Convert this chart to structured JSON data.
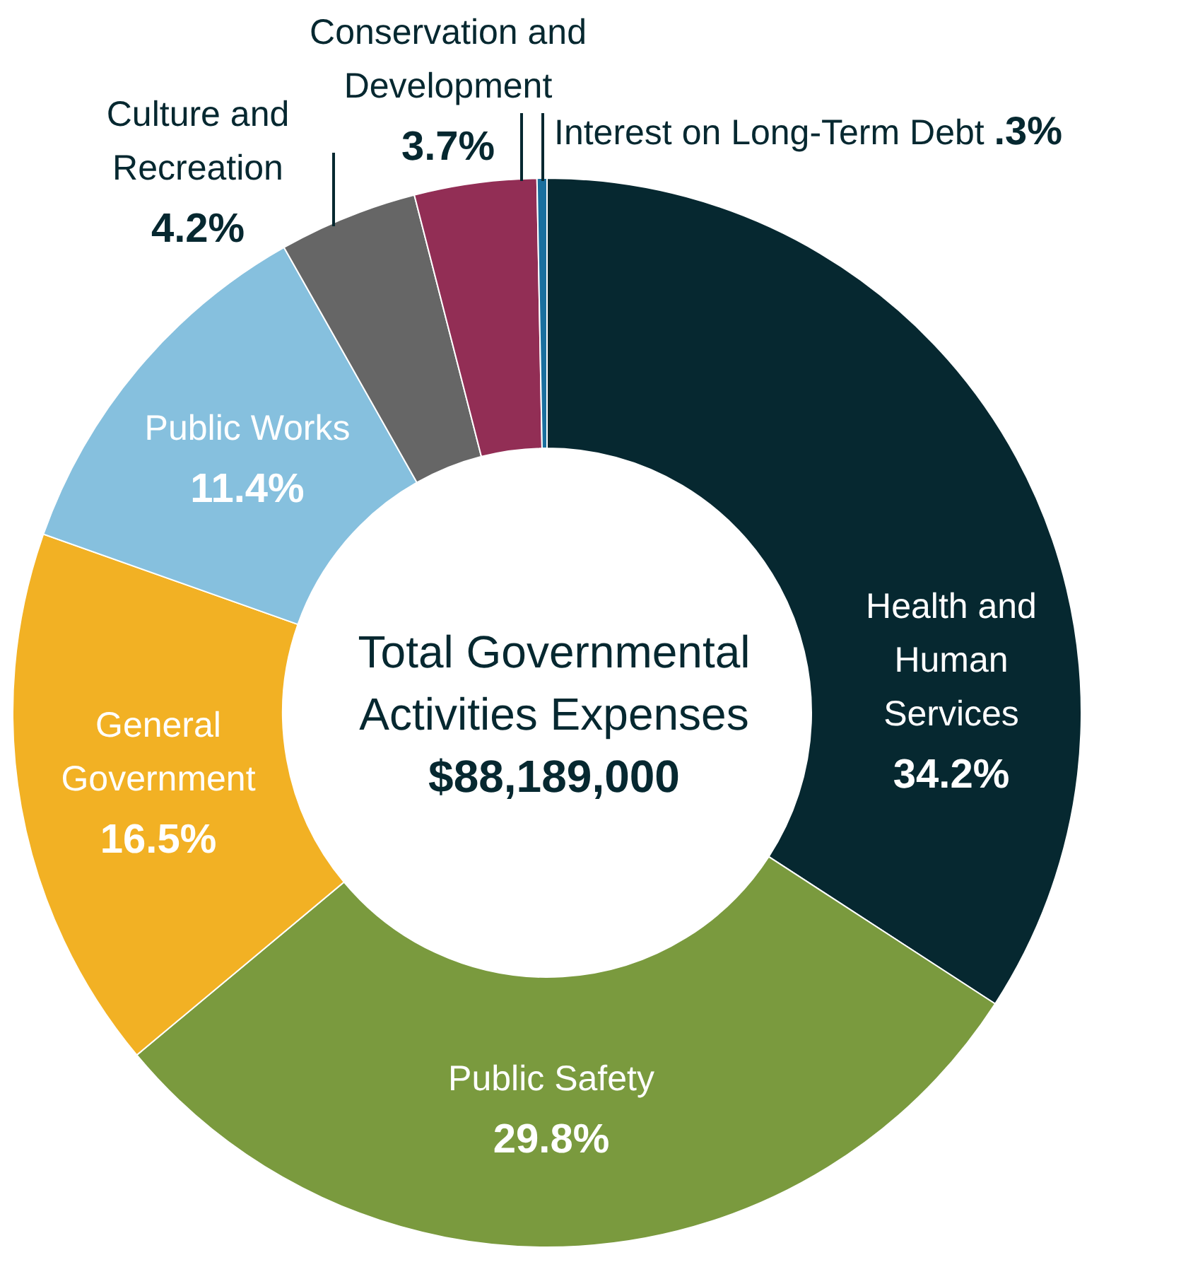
{
  "chart_data": {
    "type": "donut",
    "categories": [
      "Health and Human Services",
      "Public Safety",
      "General Government",
      "Public Works",
      "Culture and Recreation",
      "Conservation and Development",
      "Interest on Long-Term Debt"
    ],
    "values": [
      34.2,
      29.8,
      16.5,
      11.4,
      4.2,
      3.7,
      0.3
    ],
    "value_labels": [
      "34.2%",
      "29.8%",
      "16.5%",
      "11.4%",
      "4.2%",
      "3.7%",
      ".3%"
    ],
    "colors": [
      "#062830",
      "#7a9a3e",
      "#f2b124",
      "#86c0de",
      "#666666",
      "#922e55",
      "#1a6f9e"
    ],
    "annotations": [
      "Total Governmental Activities Expenses",
      "$88,189,000"
    ]
  }
}
